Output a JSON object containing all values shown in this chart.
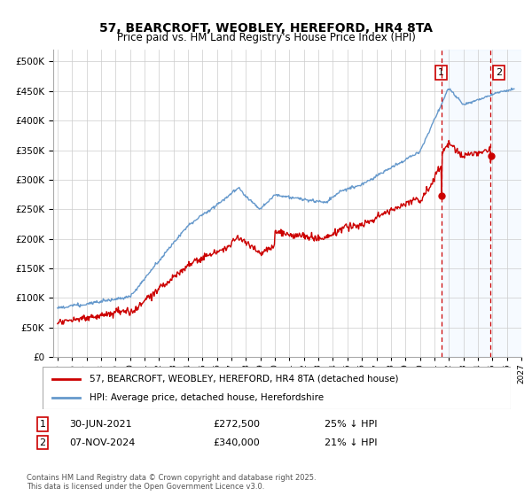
{
  "title": "57, BEARCROFT, WEOBLEY, HEREFORD, HR4 8TA",
  "subtitle": "Price paid vs. HM Land Registry's House Price Index (HPI)",
  "ylim": [
    0,
    520000
  ],
  "yticks": [
    0,
    50000,
    100000,
    150000,
    200000,
    250000,
    300000,
    350000,
    400000,
    450000,
    500000
  ],
  "ytick_labels": [
    "£0",
    "£50K",
    "£100K",
    "£150K",
    "£200K",
    "£250K",
    "£300K",
    "£350K",
    "£400K",
    "£450K",
    "£500K"
  ],
  "xlim_start": 1994.7,
  "xlim_end": 2027.0,
  "hpi_color": "#6699cc",
  "price_color": "#cc0000",
  "transaction1_date": 2021.47,
  "transaction2_date": 2024.84,
  "transaction1_price": 272500,
  "transaction2_price": 340000,
  "legend_line1": "57, BEARCROFT, WEOBLEY, HEREFORD, HR4 8TA (detached house)",
  "legend_line2": "HPI: Average price, detached house, Herefordshire",
  "footnote": "Contains HM Land Registry data © Crown copyright and database right 2025.\nThis data is licensed under the Open Government Licence v3.0.",
  "background_color": "#ffffff",
  "grid_color": "#cccccc",
  "shaded_color": "#ddeeff"
}
